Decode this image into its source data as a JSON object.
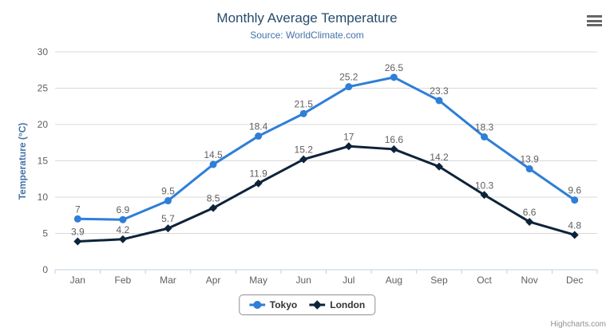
{
  "chart": {
    "title": "Monthly Average Temperature",
    "subtitle": "Source: WorldClimate.com",
    "credits": "Highcharts.com",
    "menu_icon": "hamburger-menu-icon"
  },
  "chart_data": {
    "type": "line",
    "title": "Monthly Average Temperature",
    "subtitle": "Source: WorldClimate.com",
    "categories": [
      "Jan",
      "Feb",
      "Mar",
      "Apr",
      "May",
      "Jun",
      "Jul",
      "Aug",
      "Sep",
      "Oct",
      "Nov",
      "Dec"
    ],
    "series": [
      {
        "name": "Tokyo",
        "color": "#2f7ed8",
        "marker": "circle",
        "values": [
          7,
          6.9,
          9.5,
          14.5,
          18.4,
          21.5,
          25.2,
          26.5,
          23.3,
          18.3,
          13.9,
          9.6
        ]
      },
      {
        "name": "London",
        "color": "#0d233a",
        "marker": "diamond",
        "values": [
          3.9,
          4.2,
          5.7,
          8.5,
          11.9,
          15.2,
          17,
          16.6,
          14.2,
          10.3,
          6.6,
          4.8
        ]
      }
    ],
    "xlabel": "",
    "ylabel": "Temperature (°C)",
    "ylim": [
      0,
      30
    ],
    "ytick_step": 5,
    "yticks": [
      0,
      5,
      10,
      15,
      20,
      25,
      30
    ],
    "grid": true,
    "data_labels": true,
    "legend_position": "bottom-center"
  },
  "colors": {
    "title": "#274b6d",
    "subtitle": "#4572A7",
    "axis_title": "#4572A7",
    "axis_label": "#606060",
    "data_label": "#606060",
    "gridline": "#d8d8d8",
    "axis_line": "#c0d0e0",
    "legend_border": "#909090",
    "legend_text": "#333333",
    "credits": "#909090",
    "menu_icon": "#666666",
    "background": "#ffffff"
  }
}
